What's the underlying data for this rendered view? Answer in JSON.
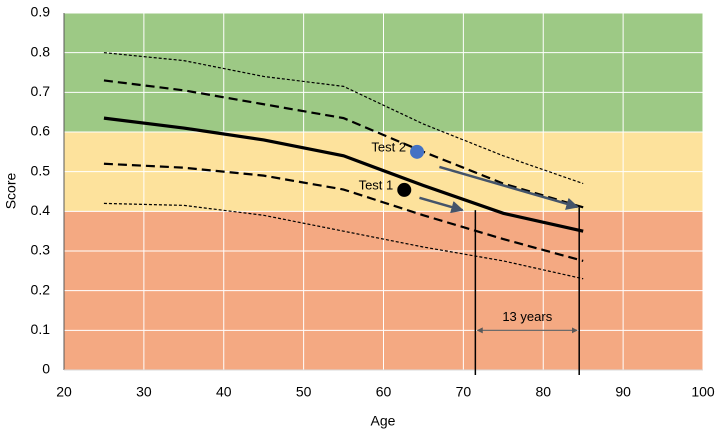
{
  "chart_data": {
    "type": "line",
    "x_label": "Age",
    "y_label": "Score",
    "xlim": [
      20,
      100
    ],
    "xticks": [
      20,
      30,
      40,
      50,
      60,
      70,
      80,
      90,
      100
    ],
    "ylim": [
      0,
      0.9
    ],
    "yticks": [
      0,
      0.1,
      0.2,
      0.3,
      0.4,
      0.5,
      0.6,
      0.7,
      0.8,
      0.9
    ],
    "grid": true,
    "bands": [
      {
        "from": 0,
        "to": 0.4,
        "color": "#f4a982"
      },
      {
        "from": 0.4,
        "to": 0.6,
        "color": "#fde29c"
      },
      {
        "from": 0.6,
        "to": 0.9,
        "color": "#9dc985"
      }
    ],
    "x": [
      25,
      35,
      45,
      55,
      65,
      75,
      85
    ],
    "series": [
      {
        "color": "#000000",
        "style": "dotted",
        "values": [
          0.8,
          0.78,
          0.74,
          0.715,
          0.62,
          0.54,
          0.47
        ]
      },
      {
        "color": "#000000",
        "style": "dashed",
        "values": [
          0.73,
          0.705,
          0.67,
          0.635,
          0.55,
          0.47,
          0.41
        ]
      },
      {
        "color": "#000000",
        "style": "thick",
        "values": [
          0.635,
          0.61,
          0.58,
          0.54,
          0.465,
          0.395,
          0.35
        ]
      },
      {
        "color": "#000000",
        "style": "dashed",
        "values": [
          0.52,
          0.51,
          0.49,
          0.455,
          0.39,
          0.33,
          0.275
        ]
      },
      {
        "color": "#000000",
        "style": "dotted",
        "values": [
          0.42,
          0.415,
          0.39,
          0.35,
          0.31,
          0.275,
          0.23
        ]
      }
    ],
    "points": [
      {
        "label": "Test 1",
        "x": 62.6,
        "y": 0.454,
        "color": "#000000"
      },
      {
        "label": "Test 2",
        "x": 64.2,
        "y": 0.55,
        "color": "#4472c4"
      }
    ],
    "arrows": [
      {
        "x": [
          64.5,
          69.9
        ],
        "y": [
          0.434,
          0.403
        ],
        "color": "#44546a"
      },
      {
        "x": [
          67,
          84.3
        ],
        "y": [
          0.512,
          0.411
        ],
        "color": "#44546a"
      }
    ],
    "vlines": [
      {
        "x": 71.5,
        "y": [
          0,
          0.403
        ]
      },
      {
        "x": 84.5,
        "y": [
          0,
          0.41
        ]
      }
    ],
    "interval": {
      "label": "13 years",
      "x": [
        71.5,
        84.5
      ],
      "y": 0.1,
      "color": "#595959"
    }
  }
}
